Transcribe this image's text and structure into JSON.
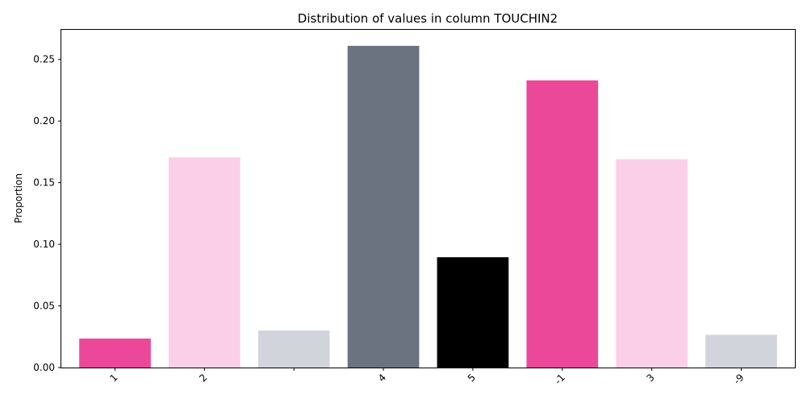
{
  "chart_data": {
    "type": "bar",
    "title": "Distribution of values in column TOUCHIN2",
    "xlabel": "",
    "ylabel": "Proportion",
    "categories": [
      "1",
      "2",
      " ",
      "4",
      "5",
      "-1",
      "3",
      "-9"
    ],
    "values": [
      0.0235,
      0.1705,
      0.03,
      0.261,
      0.0895,
      0.233,
      0.169,
      0.0265
    ],
    "colors": [
      "#ec4899",
      "#fbcfe8",
      "#d1d5db",
      "#6b7280",
      "#000000",
      "#ec4899",
      "#fbcfe8",
      "#d1d5db"
    ],
    "ylim": [
      0,
      0.274
    ],
    "yticks": [
      "0.00",
      "0.05",
      "0.10",
      "0.15",
      "0.20",
      "0.25"
    ],
    "grid": false,
    "legend": "none"
  }
}
